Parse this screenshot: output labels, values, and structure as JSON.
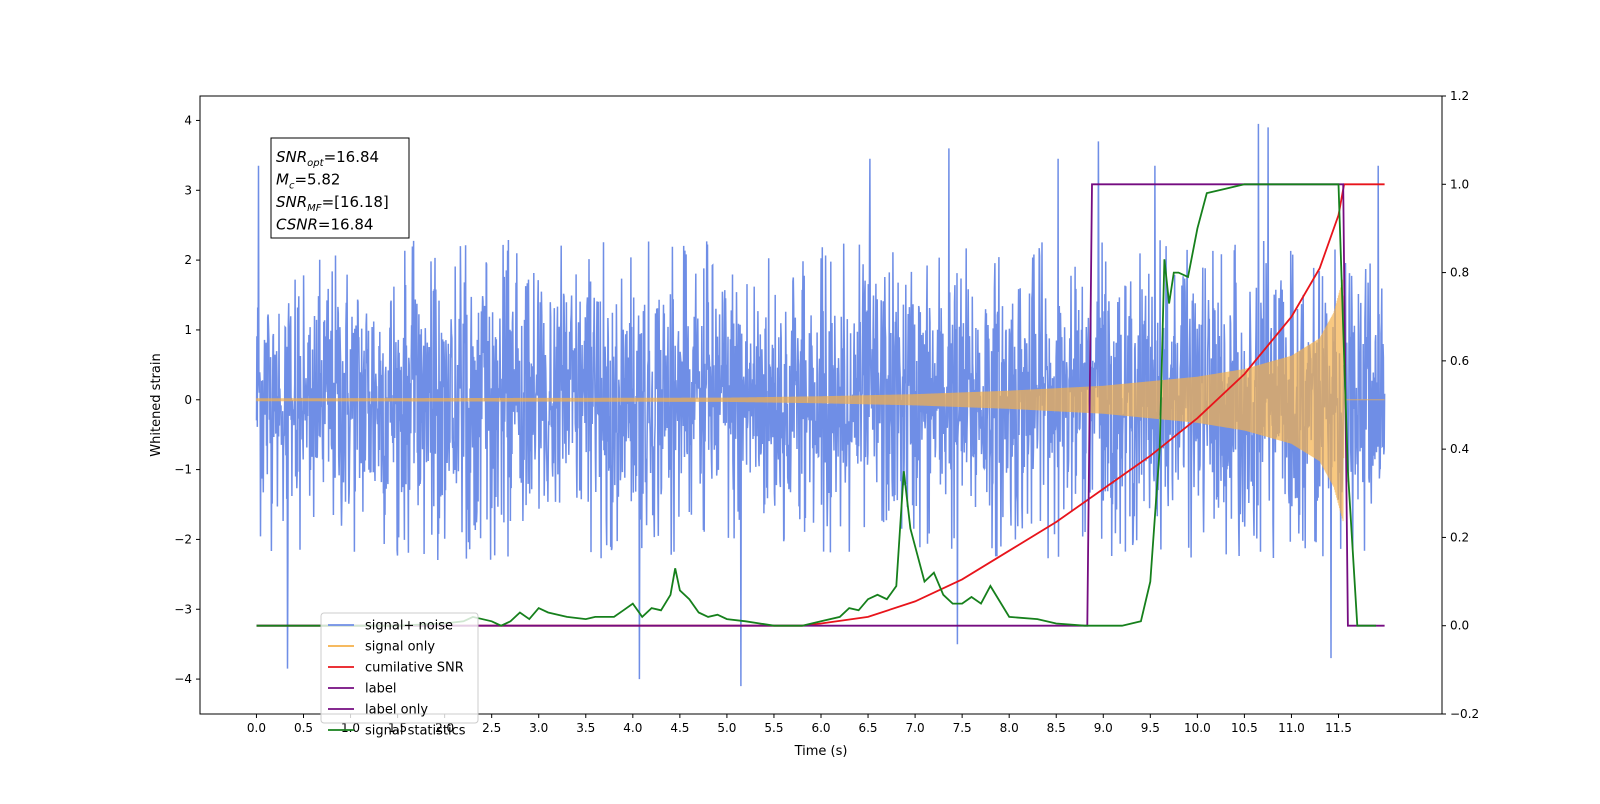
{
  "chart_data": {
    "type": "line",
    "title": "",
    "xlabel": "Time (s)",
    "ylabel": "Whitened strain",
    "xlim": [
      -0.6,
      12.6
    ],
    "ylim": [
      -4.5,
      4.35
    ],
    "y2lim": [
      -0.2,
      1.2
    ],
    "grid": false,
    "legend_position": "bottom-left",
    "x_ticks": [
      0.0,
      0.5,
      1.0,
      1.5,
      2.0,
      2.5,
      3.0,
      3.5,
      4.0,
      4.5,
      5.0,
      5.5,
      6.0,
      6.5,
      7.0,
      7.5,
      8.0,
      8.5,
      9.0,
      9.5,
      10.0,
      10.5,
      11.0,
      11.5
    ],
    "x_tick_labels": [
      "0.0",
      "0.5",
      "1.0",
      "1.5",
      "2.0",
      "2.5",
      "3.0",
      "3.5",
      "4.0",
      "4.5",
      "5.0",
      "5.5",
      "6.0",
      "6.5",
      "7.0",
      "7.5",
      "8.0",
      "8.5",
      "9.0",
      "9.5",
      "10.0",
      "10.5",
      "11.0",
      "11.5"
    ],
    "y_ticks": [
      -4,
      -3,
      -2,
      -1,
      0,
      1,
      2,
      3,
      4
    ],
    "y_tick_labels": [
      "−4",
      "−3",
      "−2",
      "−1",
      "0",
      "1",
      "2",
      "3",
      "4"
    ],
    "y2_ticks": [
      -0.2,
      0.0,
      0.2,
      0.4,
      0.6,
      0.8,
      1.0,
      1.2
    ],
    "y2_tick_labels": [
      "−0.2",
      "0.0",
      "0.2",
      "0.4",
      "0.6",
      "0.8",
      "1.0",
      "1.2"
    ],
    "annotation": {
      "lines": [
        {
          "base": "SNR",
          "sub": "opt",
          "text": "=16.84"
        },
        {
          "base": "M",
          "sub": "c",
          "text": "=5.82"
        },
        {
          "base": "SNR",
          "sub": "MF",
          "text": "=[16.18]"
        },
        {
          "base": "CSNR",
          "sub": "",
          "text": "=16.84"
        }
      ]
    },
    "series": [
      {
        "name": "signal+ noise",
        "axis": "left",
        "color": "#6f8ee6",
        "rendering": "dense noise trace",
        "x_range": [
          0.0,
          11.99
        ],
        "typical_range": [
          -2.3,
          2.3
        ],
        "peaks": [
          {
            "x": 0.02,
            "y": 3.35
          },
          {
            "x": 0.33,
            "y": -3.85
          },
          {
            "x": 4.07,
            "y": -4.0
          },
          {
            "x": 5.15,
            "y": -4.1
          },
          {
            "x": 6.52,
            "y": 3.45
          },
          {
            "x": 7.36,
            "y": 3.6
          },
          {
            "x": 7.45,
            "y": -3.5
          },
          {
            "x": 8.52,
            "y": 3.45
          },
          {
            "x": 8.95,
            "y": 3.7
          },
          {
            "x": 9.55,
            "y": 3.35
          },
          {
            "x": 10.65,
            "y": 3.95
          },
          {
            "x": 10.75,
            "y": 3.9
          },
          {
            "x": 11.42,
            "y": -3.7
          },
          {
            "x": 11.92,
            "y": 3.35
          }
        ]
      },
      {
        "name": "signal only",
        "axis": "left",
        "color": "#f5b04a",
        "rendering": "chirp envelope",
        "x_range": [
          0.0,
          11.99
        ],
        "envelope_x": [
          0.0,
          5.0,
          6.0,
          7.0,
          8.0,
          9.0,
          10.0,
          10.5,
          11.0,
          11.3,
          11.45,
          11.55,
          11.56
        ],
        "envelope_y": [
          0.02,
          0.03,
          0.05,
          0.08,
          0.13,
          0.2,
          0.33,
          0.44,
          0.63,
          0.88,
          1.25,
          1.75,
          0.0
        ]
      },
      {
        "name": "cumilative SNR",
        "axis": "right",
        "color": "#e8141b",
        "x": [
          0.0,
          5.8,
          6.0,
          6.5,
          7.0,
          7.5,
          8.0,
          8.5,
          9.0,
          9.5,
          10.0,
          10.5,
          11.0,
          11.3,
          11.5,
          11.56,
          11.99
        ],
        "y": [
          0.0,
          0.0,
          0.005,
          0.02,
          0.055,
          0.105,
          0.17,
          0.235,
          0.31,
          0.385,
          0.47,
          0.57,
          0.7,
          0.81,
          0.93,
          1.0,
          1.0
        ]
      },
      {
        "name": "label",
        "axis": "right",
        "color": "#750c80",
        "x": [
          0.0,
          8.83,
          8.88,
          11.55,
          11.6,
          11.99
        ],
        "y": [
          0.0,
          0.0,
          1.0,
          1.0,
          0.0,
          0.0
        ]
      },
      {
        "name": "label only",
        "axis": "right",
        "color": "#750c80",
        "rendering": "legend only"
      },
      {
        "name": "signal statistics",
        "axis": "right",
        "color": "#16801c",
        "x": [
          0.0,
          0.5,
          1.0,
          1.5,
          2.0,
          2.2,
          2.3,
          2.5,
          2.6,
          2.7,
          2.8,
          2.9,
          3.0,
          3.1,
          3.3,
          3.5,
          3.6,
          3.8,
          3.9,
          4.0,
          4.1,
          4.2,
          4.3,
          4.4,
          4.45,
          4.5,
          4.6,
          4.7,
          4.8,
          4.9,
          5.0,
          5.2,
          5.5,
          5.8,
          6.0,
          6.2,
          6.3,
          6.4,
          6.5,
          6.6,
          6.7,
          6.8,
          6.88,
          6.95,
          7.0,
          7.1,
          7.2,
          7.3,
          7.4,
          7.5,
          7.6,
          7.7,
          7.8,
          8.0,
          8.3,
          8.5,
          8.8,
          9.0,
          9.2,
          9.4,
          9.5,
          9.6,
          9.65,
          9.7,
          9.75,
          9.8,
          9.9,
          10.0,
          10.1,
          10.3,
          10.5,
          10.7,
          11.0,
          11.3,
          11.4,
          11.5,
          11.6,
          11.7,
          11.9
        ],
        "y": [
          0.0,
          0.0,
          0.0,
          0.0,
          0.005,
          0.01,
          0.02,
          0.01,
          0.0,
          0.01,
          0.03,
          0.015,
          0.04,
          0.03,
          0.02,
          0.015,
          0.02,
          0.02,
          0.035,
          0.05,
          0.02,
          0.04,
          0.035,
          0.07,
          0.13,
          0.08,
          0.06,
          0.03,
          0.02,
          0.025,
          0.015,
          0.01,
          0.0,
          0.0,
          0.01,
          0.02,
          0.04,
          0.035,
          0.06,
          0.07,
          0.06,
          0.09,
          0.35,
          0.22,
          0.18,
          0.1,
          0.12,
          0.07,
          0.05,
          0.05,
          0.065,
          0.05,
          0.09,
          0.02,
          0.015,
          0.005,
          0.0,
          0.0,
          0.0,
          0.01,
          0.1,
          0.4,
          0.83,
          0.73,
          0.8,
          0.8,
          0.79,
          0.9,
          0.98,
          0.99,
          1.0,
          1.0,
          1.0,
          1.0,
          1.0,
          1.0,
          0.35,
          0.0,
          0.0
        ]
      }
    ]
  }
}
